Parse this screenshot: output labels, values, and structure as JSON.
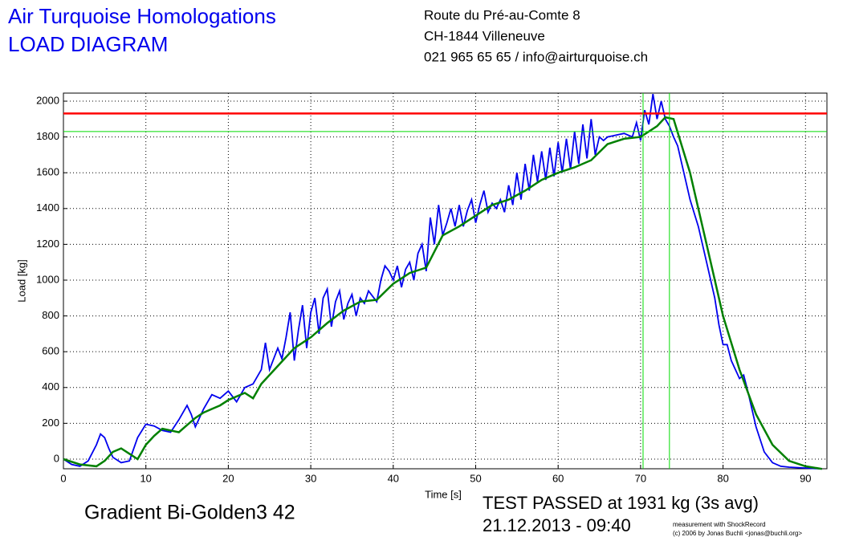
{
  "header": {
    "title": "Air Turquoise Homologations",
    "subtitle": "LOAD DIAGRAM",
    "address": [
      "Route du Pré-au-Comte 8",
      "CH-1844 Villeneuve",
      "021 965 65 65 / info@airturquoise.ch"
    ]
  },
  "footer": {
    "glider": "Gradient Bi-Golden3 42",
    "result": "TEST PASSED at 1931 kg (3s avg)",
    "date": "21.12.2013 - 09:40",
    "credit": [
      "measurement with ShockRecord",
      "(c) 2006 by Jonas Buchli <jonas@buchli.org>"
    ]
  },
  "chart_data": {
    "type": "line",
    "xlabel": "Time [s]",
    "ylabel": "Load [kg]",
    "xlim": [
      0,
      92.6
    ],
    "ylim": [
      -54,
      2045
    ],
    "xticks": [
      0,
      10,
      20,
      30,
      40,
      50,
      60,
      70,
      80,
      90
    ],
    "yticks": [
      0,
      200,
      400,
      600,
      800,
      1000,
      1200,
      1400,
      1600,
      1800,
      2000
    ],
    "grid": true,
    "hlines": [
      {
        "value": 1931,
        "color": "#ff0000"
      },
      {
        "value": 1830,
        "color": "#00dd00"
      }
    ],
    "vlines": [
      {
        "value": 70.3,
        "color": "#00dd00"
      },
      {
        "value": 73.5,
        "color": "#00dd00"
      }
    ],
    "series": [
      {
        "name": "load",
        "color": "#0000ee",
        "x": [
          0,
          1,
          2,
          3,
          4,
          4.5,
          5,
          5.5,
          6,
          7,
          8,
          9,
          10,
          11,
          12,
          13,
          14,
          15,
          15.5,
          16,
          17,
          18,
          19,
          20,
          21,
          22,
          23,
          24,
          24.5,
          25,
          26,
          26.5,
          27,
          27.5,
          28,
          28.5,
          29,
          29.5,
          30,
          30.5,
          31,
          31.5,
          32,
          32.5,
          33,
          33.5,
          34,
          34.5,
          35,
          35.5,
          36,
          36.5,
          37,
          38,
          38.5,
          39,
          39.5,
          40,
          40.5,
          41,
          41.5,
          42,
          42.5,
          43,
          43.5,
          44,
          44.5,
          45,
          45.5,
          46,
          46.5,
          47,
          47.5,
          48,
          48.5,
          49,
          49.5,
          50,
          50.5,
          51,
          51.5,
          52,
          52.5,
          53,
          53.5,
          54,
          54.5,
          55,
          55.5,
          56,
          56.5,
          57,
          57.5,
          58,
          58.5,
          59,
          59.5,
          60,
          60.5,
          61,
          61.5,
          62,
          62.5,
          63,
          63.5,
          64,
          64.5,
          65,
          65.5,
          66,
          67,
          68,
          69,
          69.5,
          70,
          70.5,
          71,
          71.5,
          72,
          72.5,
          73,
          73.5,
          74,
          74.5,
          75,
          75.5,
          76,
          77,
          78,
          79,
          79.5,
          80,
          80.5,
          81,
          82,
          82.5,
          83,
          84,
          85,
          86,
          87,
          88,
          90,
          92
        ],
        "values": [
          0,
          -30,
          -40,
          -10,
          80,
          140,
          120,
          60,
          10,
          -20,
          -10,
          120,
          195,
          185,
          160,
          150,
          220,
          300,
          250,
          180,
          280,
          360,
          340,
          380,
          320,
          400,
          420,
          500,
          650,
          500,
          620,
          560,
          680,
          820,
          550,
          720,
          860,
          620,
          820,
          900,
          700,
          900,
          950,
          740,
          880,
          940,
          780,
          870,
          920,
          800,
          900,
          870,
          940,
          880,
          1000,
          1080,
          1050,
          1000,
          1080,
          960,
          1060,
          1100,
          1000,
          1150,
          1200,
          1050,
          1350,
          1200,
          1420,
          1250,
          1320,
          1400,
          1300,
          1420,
          1300,
          1390,
          1450,
          1320,
          1420,
          1500,
          1380,
          1430,
          1400,
          1450,
          1380,
          1530,
          1420,
          1600,
          1450,
          1650,
          1500,
          1700,
          1550,
          1720,
          1560,
          1740,
          1580,
          1770,
          1600,
          1790,
          1620,
          1830,
          1650,
          1870,
          1680,
          1900,
          1700,
          1800,
          1780,
          1800,
          1810,
          1820,
          1800,
          1880,
          1780,
          1950,
          1870,
          2040,
          1900,
          2000,
          1900,
          1860,
          1800,
          1750,
          1650,
          1550,
          1450,
          1300,
          1100,
          900,
          750,
          640,
          640,
          550,
          450,
          470,
          380,
          180,
          40,
          -20,
          -40,
          -45,
          -50,
          -55
        ]
      },
      {
        "name": "3s avg",
        "color": "#008000",
        "x": [
          0,
          2,
          4,
          5,
          6,
          7,
          8,
          9,
          10,
          11,
          12,
          13,
          14,
          15,
          16,
          17,
          18,
          19,
          20,
          22,
          23,
          24,
          26,
          28,
          30,
          32,
          34,
          36,
          38,
          40,
          42,
          44,
          46,
          48,
          50,
          52,
          54,
          56,
          58,
          60,
          62,
          64,
          66,
          68,
          70,
          72,
          73,
          74,
          76,
          78,
          80,
          82,
          84,
          86,
          88,
          90,
          92
        ],
        "values": [
          0,
          -30,
          -40,
          -10,
          40,
          60,
          30,
          0,
          80,
          130,
          170,
          160,
          150,
          190,
          230,
          260,
          280,
          300,
          330,
          370,
          340,
          420,
          520,
          620,
          680,
          760,
          830,
          880,
          890,
          980,
          1040,
          1070,
          1250,
          1300,
          1360,
          1420,
          1450,
          1500,
          1560,
          1600,
          1630,
          1670,
          1760,
          1790,
          1800,
          1860,
          1910,
          1900,
          1600,
          1200,
          800,
          500,
          250,
          80,
          -10,
          -40,
          -55
        ]
      }
    ]
  }
}
